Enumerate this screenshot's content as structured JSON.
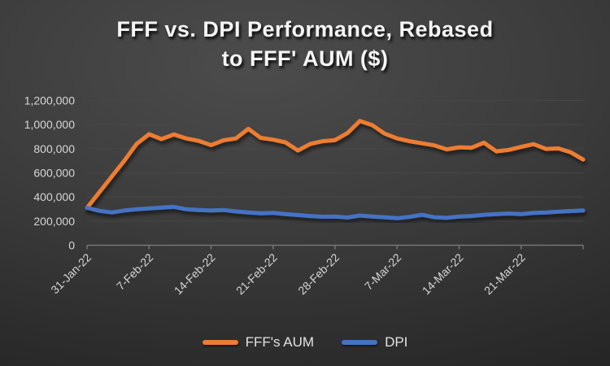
{
  "title": {
    "line1": "FFF vs. DPI Performance, Rebased",
    "line2": "to FFF' AUM ($)"
  },
  "legend": {
    "items": [
      {
        "label": "FFF's AUM",
        "color": "#ED7D31"
      },
      {
        "label": "DPI",
        "color": "#4472C4"
      }
    ]
  },
  "colors": {
    "fff_aum_line": "#ED7D31",
    "dpi_line": "#4472C4",
    "axis_text": "#d6d6d6",
    "gridline": "#474747",
    "background_center": "#4c4c4c",
    "background_edge": "#1c1c1c"
  },
  "chart_data": {
    "type": "line",
    "title": "FFF vs. DPI Performance, Rebased to FFF' AUM ($)",
    "xlabel": "",
    "ylabel": "",
    "ylim": [
      0,
      1200000
    ],
    "ytick_step": 200000,
    "grid": true,
    "legend_position": "bottom",
    "categories": [
      "31-Jan-22",
      "1-Feb-22",
      "2-Feb-22",
      "3-Feb-22",
      "4-Feb-22",
      "7-Feb-22",
      "8-Feb-22",
      "9-Feb-22",
      "10-Feb-22",
      "11-Feb-22",
      "14-Feb-22",
      "15-Feb-22",
      "16-Feb-22",
      "17-Feb-22",
      "18-Feb-22",
      "21-Feb-22",
      "22-Feb-22",
      "23-Feb-22",
      "24-Feb-22",
      "25-Feb-22",
      "28-Feb-22",
      "1-Mar-22",
      "2-Mar-22",
      "3-Mar-22",
      "4-Mar-22",
      "7-Mar-22",
      "8-Mar-22",
      "9-Mar-22",
      "10-Mar-22",
      "11-Mar-22",
      "14-Mar-22",
      "15-Mar-22",
      "16-Mar-22",
      "17-Mar-22",
      "18-Mar-22",
      "21-Mar-22",
      "22-Mar-22",
      "23-Mar-22",
      "24-Mar-22",
      "25-Mar-22",
      "28-Mar-22"
    ],
    "xtick_label_indices": [
      0,
      5,
      10,
      15,
      20,
      25,
      30,
      35
    ],
    "series": [
      {
        "name": "FFF's AUM",
        "color": "#ED7D31",
        "values": [
          310000,
          440000,
          570000,
          700000,
          840000,
          920000,
          880000,
          918000,
          885000,
          865000,
          830000,
          870000,
          885000,
          965000,
          890000,
          875000,
          853000,
          785000,
          840000,
          862000,
          872000,
          930000,
          1030000,
          995000,
          925000,
          885000,
          862000,
          845000,
          828000,
          795000,
          812000,
          808000,
          850000,
          778000,
          790000,
          815000,
          838000,
          798000,
          802000,
          770000,
          710000
        ]
      },
      {
        "name": "DPI",
        "color": "#4472C4",
        "values": [
          310000,
          285000,
          272000,
          288000,
          298000,
          305000,
          312000,
          318000,
          298000,
          292000,
          288000,
          292000,
          280000,
          272000,
          265000,
          268000,
          258000,
          250000,
          242000,
          236000,
          238000,
          230000,
          246000,
          238000,
          232000,
          224000,
          235000,
          252000,
          232000,
          228000,
          238000,
          242000,
          252000,
          258000,
          263000,
          258000,
          268000,
          272000,
          278000,
          283000,
          288000
        ]
      }
    ]
  }
}
